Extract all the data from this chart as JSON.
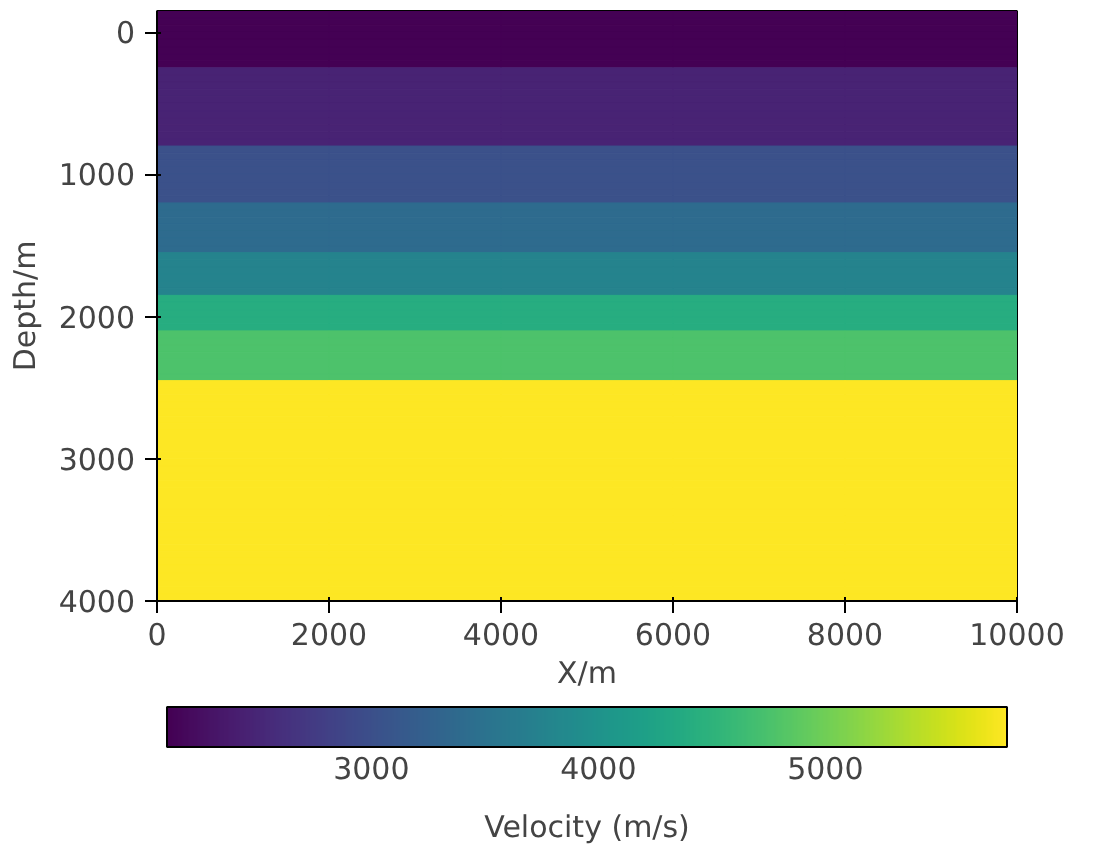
{
  "chart_data": {
    "type": "heatmap",
    "xlabel": "X/m",
    "ylabel": "Depth/m",
    "clabel": "Velocity (m/s)",
    "x": [
      1000,
      3000,
      5000,
      7000,
      9000
    ],
    "y": [
      -125,
      -75,
      -25,
      25,
      75,
      125,
      175,
      225,
      275,
      325,
      375,
      425,
      475,
      525,
      575,
      625,
      675,
      725,
      775,
      825,
      875,
      925,
      975,
      1025,
      1075,
      1125,
      1175,
      1225,
      1275,
      1325,
      1375,
      1425,
      1475,
      1525,
      1575,
      1625,
      1675,
      1725,
      1775,
      1825,
      1875,
      1925,
      1975,
      2025,
      2075,
      2125,
      2175,
      2225,
      2275,
      2325,
      2375,
      2425,
      2475,
      2525,
      2575,
      2625,
      2675,
      2725,
      2775,
      2825,
      2875,
      2925,
      2975,
      3025,
      3075,
      3125,
      3175,
      3225,
      3275,
      3325,
      3375,
      3425,
      3475,
      3525,
      3575,
      3625,
      3675,
      3725,
      3775,
      3825,
      3875,
      3925,
      3975
    ],
    "cells": [
      [
        2100,
        2100,
        2100,
        2100,
        2100
      ],
      [
        2100,
        2100,
        2100,
        2100,
        2100
      ],
      [
        2100,
        2100,
        2100,
        2100,
        2100
      ],
      [
        2100,
        2100,
        2100,
        2100,
        2100
      ],
      [
        2100,
        2100,
        2100,
        2100,
        2100
      ],
      [
        2100,
        2100,
        2100,
        2100,
        2100
      ],
      [
        2100,
        2100,
        2100,
        2100,
        2100
      ],
      [
        2100,
        2100,
        2100,
        2100,
        2100
      ],
      [
        2470,
        2470,
        2470,
        2470,
        2470
      ],
      [
        2470,
        2470,
        2470,
        2470,
        2470
      ],
      [
        2470,
        2470,
        2470,
        2470,
        2470
      ],
      [
        2470,
        2470,
        2470,
        2470,
        2470
      ],
      [
        2470,
        2470,
        2470,
        2470,
        2470
      ],
      [
        2470,
        2470,
        2470,
        2470,
        2470
      ],
      [
        2470,
        2470,
        2470,
        2470,
        2470
      ],
      [
        2470,
        2470,
        2470,
        2470,
        2470
      ],
      [
        2470,
        2470,
        2470,
        2470,
        2470
      ],
      [
        2470,
        2470,
        2470,
        2470,
        2470
      ],
      [
        2470,
        2470,
        2470,
        2470,
        2470
      ],
      [
        3020,
        3020,
        3020,
        3020,
        3020
      ],
      [
        3020,
        3020,
        3020,
        3020,
        3020
      ],
      [
        3020,
        3020,
        3020,
        3020,
        3020
      ],
      [
        3020,
        3020,
        3020,
        3020,
        3020
      ],
      [
        3020,
        3020,
        3020,
        3020,
        3020
      ],
      [
        3020,
        3020,
        3020,
        3020,
        3020
      ],
      [
        3020,
        3020,
        3020,
        3020,
        3020
      ],
      [
        3020,
        3020,
        3020,
        3020,
        3020
      ],
      [
        3400,
        3400,
        3400,
        3400,
        3400
      ],
      [
        3400,
        3400,
        3400,
        3400,
        3400
      ],
      [
        3400,
        3400,
        3400,
        3400,
        3400
      ],
      [
        3400,
        3400,
        3400,
        3400,
        3400
      ],
      [
        3400,
        3400,
        3400,
        3400,
        3400
      ],
      [
        3400,
        3400,
        3400,
        3400,
        3400
      ],
      [
        3400,
        3400,
        3400,
        3400,
        3400
      ],
      [
        3760,
        3760,
        3760,
        3760,
        3760
      ],
      [
        3760,
        3760,
        3760,
        3760,
        3760
      ],
      [
        3760,
        3760,
        3760,
        3760,
        3760
      ],
      [
        3760,
        3760,
        3760,
        3760,
        3760
      ],
      [
        3760,
        3760,
        3760,
        3760,
        3760
      ],
      [
        3760,
        3760,
        3760,
        3760,
        3760
      ],
      [
        4400,
        4400,
        4400,
        4400,
        4400
      ],
      [
        4400,
        4400,
        4400,
        4400,
        4400
      ],
      [
        4400,
        4400,
        4400,
        4400,
        4400
      ],
      [
        4400,
        4400,
        4400,
        4400,
        4400
      ],
      [
        4400,
        4400,
        4400,
        4400,
        4400
      ],
      [
        4760,
        4760,
        4760,
        4760,
        4760
      ],
      [
        4760,
        4760,
        4760,
        4760,
        4760
      ],
      [
        4760,
        4760,
        4760,
        4760,
        4760
      ],
      [
        4760,
        4760,
        4760,
        4760,
        4760
      ],
      [
        4760,
        4760,
        4760,
        4760,
        4760
      ],
      [
        4760,
        4760,
        4760,
        4760,
        4760
      ],
      [
        4760,
        4760,
        4760,
        4760,
        4760
      ],
      [
        5800,
        5800,
        5800,
        5800,
        5800
      ],
      [
        5800,
        5800,
        5800,
        5800,
        5800
      ],
      [
        5800,
        5800,
        5800,
        5800,
        5800
      ],
      [
        5800,
        5800,
        5800,
        5800,
        5800
      ],
      [
        5800,
        5800,
        5800,
        5800,
        5800
      ],
      [
        5800,
        5800,
        5800,
        5800,
        5800
      ],
      [
        5800,
        5800,
        5800,
        5800,
        5800
      ],
      [
        5800,
        5800,
        5800,
        5800,
        5800
      ],
      [
        5800,
        5800,
        5800,
        5800,
        5800
      ],
      [
        5800,
        5800,
        5800,
        5800,
        5800
      ],
      [
        5800,
        5800,
        5800,
        5800,
        5800
      ],
      [
        5800,
        5800,
        5800,
        5800,
        5800
      ],
      [
        5800,
        5800,
        5800,
        5800,
        5800
      ],
      [
        5800,
        5800,
        5800,
        5800,
        5800
      ],
      [
        5800,
        5800,
        5800,
        5800,
        5800
      ],
      [
        5800,
        5800,
        5800,
        5800,
        5800
      ],
      [
        5800,
        5800,
        5800,
        5800,
        5800
      ],
      [
        5800,
        5800,
        5800,
        5800,
        5800
      ],
      [
        5800,
        5800,
        5800,
        5800,
        5800
      ],
      [
        5800,
        5800,
        5800,
        5800,
        5800
      ],
      [
        5800,
        5800,
        5800,
        5800,
        5800
      ],
      [
        5800,
        5800,
        5800,
        5800,
        5800
      ],
      [
        5800,
        5800,
        5800,
        5800,
        5800
      ],
      [
        5800,
        5800,
        5800,
        5800,
        5800
      ],
      [
        5800,
        5800,
        5800,
        5800,
        5800
      ],
      [
        5800,
        5800,
        5800,
        5800,
        5800
      ],
      [
        5800,
        5800,
        5800,
        5800,
        5800
      ],
      [
        5800,
        5800,
        5800,
        5800,
        5800
      ],
      [
        5800,
        5800,
        5800,
        5800,
        5800
      ],
      [
        5800,
        5800,
        5800,
        5800,
        5800
      ],
      [
        5800,
        5800,
        5800,
        5800,
        5800
      ]
    ],
    "xlim": [
      0,
      10000
    ],
    "ylim": [
      4000,
      -150
    ],
    "xticks": [
      0,
      2000,
      4000,
      6000,
      8000,
      10000
    ],
    "yticks": [
      0,
      1000,
      2000,
      3000,
      4000
    ],
    "clim": [
      2100,
      5800
    ],
    "cticks": [
      3000,
      4000,
      5000
    ]
  }
}
